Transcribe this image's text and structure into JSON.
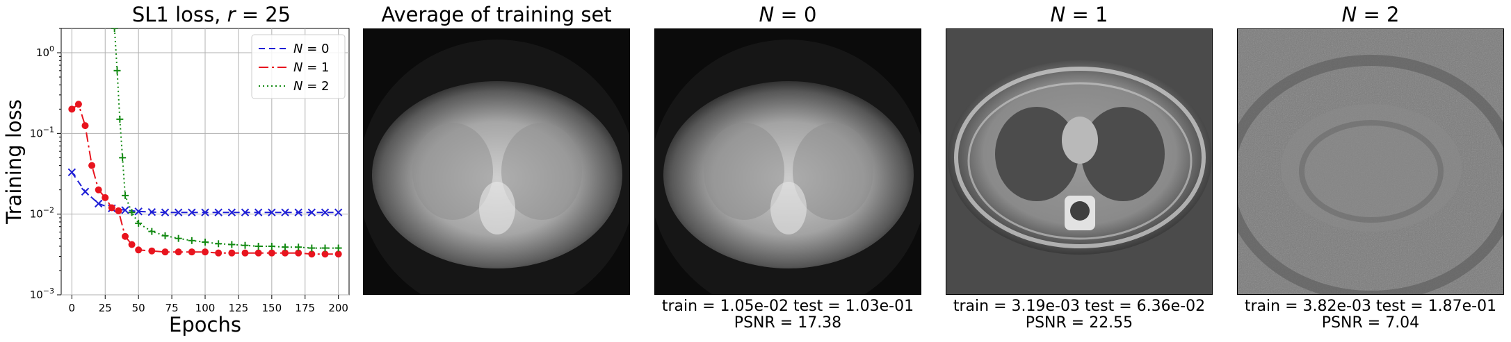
{
  "chart_data": {
    "type": "line",
    "title": "SL1 loss, r = 25",
    "xlabel": "Epochs",
    "ylabel": "Training loss",
    "yscale": "log",
    "xlim": [
      -8,
      208
    ],
    "ylim": [
      0.001,
      2.0
    ],
    "xticks": [
      0,
      25,
      50,
      75,
      100,
      125,
      150,
      175,
      200
    ],
    "yticks": [
      {
        "v": 1,
        "label": "10^0"
      },
      {
        "v": 0.1,
        "label": "10^-1"
      },
      {
        "v": 0.01,
        "label": "10^-2"
      },
      {
        "v": 0.001,
        "label": "10^-3"
      }
    ],
    "grid": true,
    "legend_position": "top-right",
    "series": [
      {
        "name": "N = 0",
        "color": "#1f1fd6",
        "dash": "9,6",
        "marker": "x",
        "x": [
          0,
          10,
          20,
          30,
          40,
          50,
          60,
          70,
          80,
          90,
          100,
          110,
          120,
          130,
          140,
          150,
          160,
          170,
          180,
          190,
          200
        ],
        "y": [
          0.033,
          0.019,
          0.0135,
          0.0118,
          0.0112,
          0.0108,
          0.0106,
          0.0105,
          0.0105,
          0.0105,
          0.0105,
          0.0105,
          0.0105,
          0.0105,
          0.0105,
          0.0105,
          0.0105,
          0.0105,
          0.0105,
          0.0105,
          0.0105
        ]
      },
      {
        "name": "N = 1",
        "color": "#e8141e",
        "dash": "14,5,3,5",
        "marker": "o",
        "x": [
          0,
          5,
          10,
          15,
          20,
          25,
          30,
          35,
          40,
          45,
          50,
          60,
          70,
          80,
          90,
          100,
          110,
          120,
          130,
          140,
          150,
          160,
          170,
          180,
          190,
          200
        ],
        "y": [
          0.2,
          0.23,
          0.125,
          0.04,
          0.02,
          0.016,
          0.012,
          0.011,
          0.0053,
          0.0042,
          0.0036,
          0.0035,
          0.0034,
          0.0034,
          0.0034,
          0.0034,
          0.0033,
          0.0033,
          0.0033,
          0.0033,
          0.0033,
          0.0033,
          0.0033,
          0.0032,
          0.0032,
          0.0032
        ]
      },
      {
        "name": "N = 2",
        "color": "#138a13",
        "dash": "2,4",
        "marker": "+",
        "x": [
          32,
          34,
          36,
          38,
          40,
          45,
          50,
          60,
          70,
          80,
          90,
          100,
          110,
          120,
          130,
          140,
          150,
          160,
          170,
          180,
          190,
          200
        ],
        "y": [
          2.0,
          0.6,
          0.15,
          0.05,
          0.017,
          0.0105,
          0.0077,
          0.0061,
          0.0054,
          0.005,
          0.0047,
          0.0045,
          0.0043,
          0.0042,
          0.0041,
          0.004,
          0.004,
          0.0039,
          0.0039,
          0.0038,
          0.0038,
          0.0038
        ]
      }
    ]
  },
  "panels": [
    {
      "title_pre": "",
      "title_var": "",
      "title_post": "Average of training set",
      "caption_line1": "",
      "caption_line2": ""
    },
    {
      "title_pre": "",
      "title_var": "N",
      "title_post": " = 0",
      "caption_line1": "train = 1.05e-02   test = 1.03e-01",
      "caption_line2": "PSNR = 17.38"
    },
    {
      "title_pre": "",
      "title_var": "N",
      "title_post": " = 1",
      "caption_line1": "train = 3.19e-03   test = 6.36e-02",
      "caption_line2": "PSNR = 22.55"
    },
    {
      "title_pre": "",
      "title_var": "N",
      "title_post": " = 2",
      "caption_line1": "train = 3.82e-03   test = 1.87e-01",
      "caption_line2": "PSNR = 7.04"
    }
  ]
}
